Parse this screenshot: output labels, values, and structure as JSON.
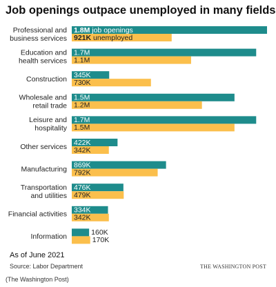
{
  "title": "Job openings outpace unemployed in many fields",
  "as_of": "As of June 2021",
  "source": "Source: Labor Department",
  "brand": "THE WASHINGTON POST",
  "credit": "(The Washington Post)",
  "colors": {
    "openings": "#1e8c8c",
    "unemployed": "#fbbf4c"
  },
  "chart_data": {
    "type": "bar",
    "orientation": "horizontal",
    "categories": [
      [
        "Professional and",
        "business services"
      ],
      [
        "Education and",
        "health services"
      ],
      [
        "Construction"
      ],
      [
        "Wholesale and",
        "retail trade"
      ],
      [
        "Leisure and",
        "hospitality"
      ],
      [
        "Other services"
      ],
      [
        "Manufacturing"
      ],
      [
        "Transportation",
        "and utilities"
      ],
      [
        "Financial activities"
      ],
      [
        "Information"
      ]
    ],
    "series": [
      {
        "name": "job openings",
        "color": "#1e8c8c",
        "values": [
          1.8,
          1.7,
          0.345,
          1.5,
          1.7,
          0.422,
          0.869,
          0.476,
          0.334,
          0.16
        ],
        "labels": [
          "1.8M",
          "1.7M",
          "345K",
          "1.5M",
          "1.7M",
          "422K",
          "869K",
          "476K",
          "334K",
          "160K"
        ]
      },
      {
        "name": "unemployed",
        "color": "#fbbf4c",
        "values": [
          0.921,
          1.1,
          0.73,
          1.2,
          1.5,
          0.342,
          0.792,
          0.479,
          0.342,
          0.17
        ],
        "labels": [
          "921K",
          "1.1M",
          "730K",
          "1.2M",
          "1.5M",
          "342K",
          "792K",
          "479K",
          "342K",
          "170K"
        ]
      }
    ],
    "value_unit": "millions",
    "xlim": [
      0,
      1.8
    ]
  }
}
